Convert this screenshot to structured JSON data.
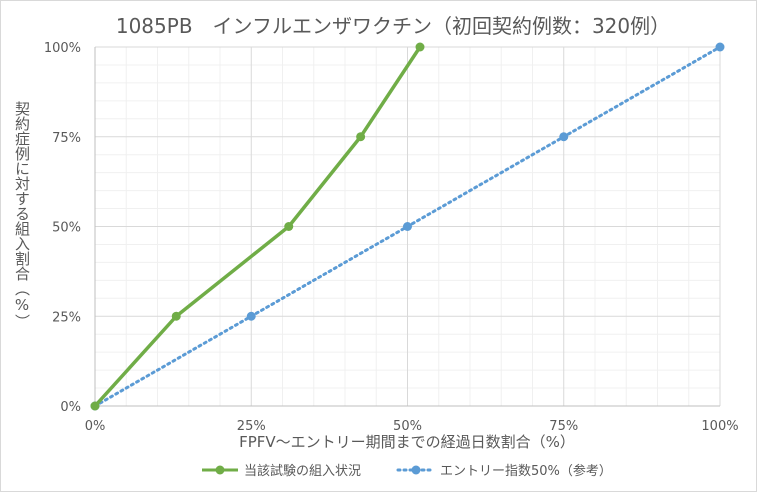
{
  "chart_data": {
    "type": "line",
    "title": "1085PB　インフルエンザワクチン（初回契約例数：320例）",
    "xlabel": "FPFV～エントリー期間までの経過日数割合（%）",
    "ylabel": "契約症例に対する組入割合（%）",
    "xlim": [
      0,
      100
    ],
    "ylim": [
      0,
      100
    ],
    "x_ticks": [
      "0%",
      "25%",
      "50%",
      "75%",
      "100%"
    ],
    "y_ticks": [
      "0%",
      "25%",
      "50%",
      "75%",
      "100%"
    ],
    "grid": true,
    "legend_position": "bottom",
    "series": [
      {
        "name": "当該試験の組入状況",
        "color": "#70ad47",
        "style": "solid",
        "points": [
          [
            0,
            0
          ],
          [
            13,
            25
          ],
          [
            31,
            50
          ],
          [
            42.5,
            75
          ],
          [
            52,
            100
          ]
        ]
      },
      {
        "name": "エントリー指数50%（参考）",
        "color": "#5b9bd5",
        "style": "dotted",
        "points": [
          [
            0,
            0
          ],
          [
            25,
            25
          ],
          [
            50,
            50
          ],
          [
            75,
            75
          ],
          [
            100,
            100
          ]
        ]
      }
    ]
  }
}
